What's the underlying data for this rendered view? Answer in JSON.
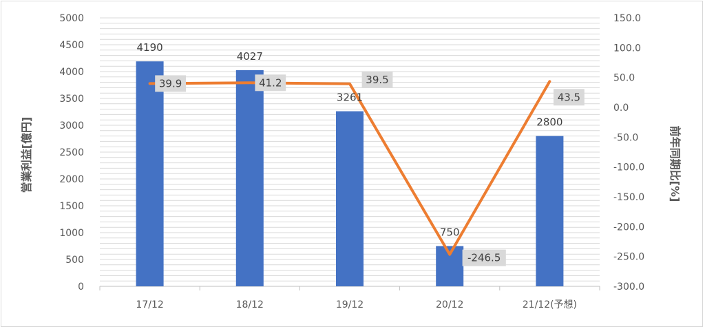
{
  "chart_data": {
    "type": "bar",
    "categories": [
      "17/12",
      "18/12",
      "19/12",
      "20/12",
      "21/12(予想)"
    ],
    "series": [
      {
        "type": "bar",
        "values": [
          4190,
          4027,
          3261,
          750,
          2800
        ],
        "axis": "left"
      },
      {
        "type": "line",
        "values": [
          39.9,
          41.2,
          39.5,
          -246.5,
          43.5
        ],
        "axis": "right"
      }
    ],
    "y_left": {
      "label": "営業利益[億円]",
      "range": [
        0,
        5000
      ],
      "ticks": [
        "0",
        "500",
        "1000",
        "1500",
        "2000",
        "2500",
        "3000",
        "3500",
        "4000",
        "4500",
        "5000"
      ]
    },
    "y_right": {
      "label": "前年同期比[%]",
      "range": [
        -300,
        150
      ],
      "ticks": [
        "-300.0",
        "-250.0",
        "-200.0",
        "-150.0",
        "-100.0",
        "-50.0",
        "0.0",
        "50.0",
        "100.0",
        "150.0"
      ]
    },
    "bar_labels": [
      "4190",
      "4027",
      "3261",
      "750",
      "2800"
    ],
    "line_labels": [
      "39.9",
      "41.2",
      "39.5",
      "-246.5",
      "43.5"
    ],
    "colors": {
      "bar": "#4472c4",
      "line": "#ed7d31",
      "label_box": "#d9d9d9",
      "grid": "#d9d9d9"
    },
    "grid": true
  }
}
